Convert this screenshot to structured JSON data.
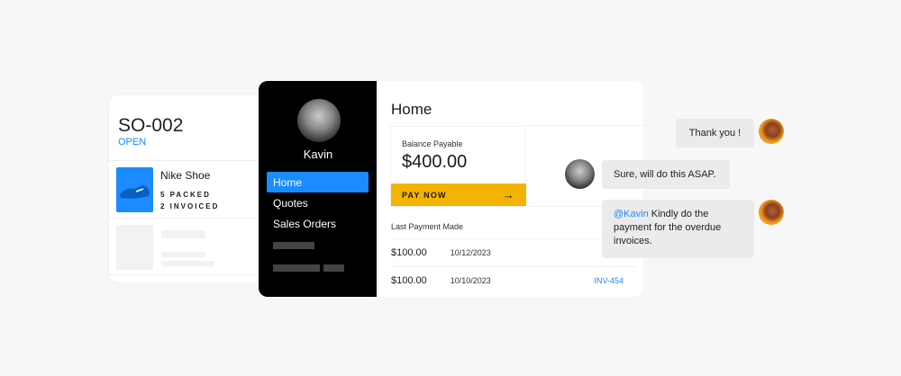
{
  "order": {
    "id": "SO-002",
    "status": "OPEN",
    "item": {
      "name": "Nike Shoe",
      "packed": "5 PACKED",
      "invoiced": "2 INVOICED"
    }
  },
  "sidebar": {
    "user": "Kavin",
    "items": [
      {
        "label": "Home",
        "active": true
      },
      {
        "label": "Quotes"
      },
      {
        "label": "Sales Orders"
      }
    ]
  },
  "main": {
    "title": "Home",
    "balance_label": "Balance Payable",
    "balance": "$400.00",
    "pay_label": "PAY NOW",
    "last_payment_label": "Last Payment Made",
    "payments": [
      {
        "amount": "$100.00",
        "date": "10/12/2023",
        "invoice": ""
      },
      {
        "amount": "$100.00",
        "date": "10/10/2023",
        "invoice": "INV-454"
      }
    ]
  },
  "chat": [
    {
      "text": "Thank you !"
    },
    {
      "text": "Sure, will do this ASAP."
    },
    {
      "mention": "@Kavin",
      "text": " Kindly do the payment for the overdue invoices."
    }
  ],
  "colors": {
    "accent": "#1a8cff",
    "pay": "#f2b400"
  }
}
